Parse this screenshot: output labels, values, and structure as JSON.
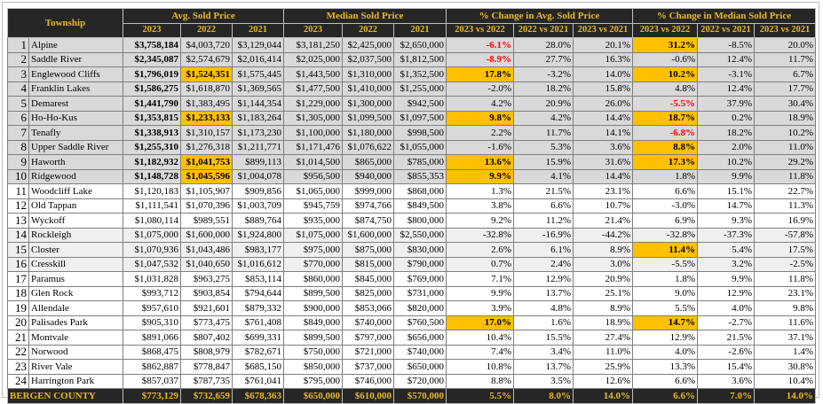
{
  "table": {
    "header": {
      "township": "Township",
      "groups": [
        "Avg. Sold Price",
        "Median Sold Price",
        "% Change in Avg. Sold Price",
        "% Change in Median Sold Price"
      ],
      "subheaders": [
        "2023",
        "2022",
        "2021",
        "2023",
        "2022",
        "2021",
        "2023 vs 2022",
        "2022 vs 2021",
        "2023 vs 2021",
        "2023 vs 2022",
        "2022 vs 2021",
        "2023 vs 2021"
      ]
    },
    "rows": [
      {
        "rank": "1",
        "township": "Alpine",
        "values": [
          "$3,758,184",
          "$4,003,720",
          "$3,129,044",
          "$3,181,250",
          "$2,425,000",
          "$2,650,000",
          "-6.1%",
          "28.0%",
          "20.1%",
          "31.2%",
          "-8.5%",
          "20.0%"
        ]
      },
      {
        "rank": "2",
        "township": "Saddle River",
        "values": [
          "$2,345,087",
          "$2,574,679",
          "$2,016,414",
          "$2,025,000",
          "$2,037,500",
          "$1,812,500",
          "-8.9%",
          "27.7%",
          "16.3%",
          "-0.6%",
          "12.4%",
          "11.7%"
        ]
      },
      {
        "rank": "3",
        "township": "Englewood Cliffs",
        "values": [
          "$1,796,019",
          "$1,524,351",
          "$1,575,445",
          "$1,443,500",
          "$1,310,000",
          "$1,352,500",
          "17.8%",
          "-3.2%",
          "14.0%",
          "10.2%",
          "-3.1%",
          "6.7%"
        ]
      },
      {
        "rank": "4",
        "township": "Franklin Lakes",
        "values": [
          "$1,586,275",
          "$1,618,870",
          "$1,369,565",
          "$1,477,500",
          "$1,410,000",
          "$1,255,000",
          "-2.0%",
          "18.2%",
          "15.8%",
          "4.8%",
          "12.4%",
          "17.7%"
        ]
      },
      {
        "rank": "5",
        "township": "Demarest",
        "values": [
          "$1,441,790",
          "$1,383,495",
          "$1,144,354",
          "$1,229,000",
          "$1,300,000",
          "$942,500",
          "4.2%",
          "20.9%",
          "26.0%",
          "-5.5%",
          "37.9%",
          "30.4%"
        ]
      },
      {
        "rank": "6",
        "township": "Ho-Ho-Kus",
        "values": [
          "$1,353,815",
          "$1,233,133",
          "$1,183,264",
          "$1,305,000",
          "$1,099,500",
          "$1,097,500",
          "9.8%",
          "4.2%",
          "14.4%",
          "18.7%",
          "0.2%",
          "18.9%"
        ]
      },
      {
        "rank": "7",
        "township": "Tenafly",
        "values": [
          "$1,338,913",
          "$1,310,157",
          "$1,173,230",
          "$1,100,000",
          "$1,180,000",
          "$998,500",
          "2.2%",
          "11.7%",
          "14.1%",
          "-6.8%",
          "18.2%",
          "10.2%"
        ]
      },
      {
        "rank": "8",
        "township": "Upper Saddle River",
        "values": [
          "$1,255,310",
          "$1,276,318",
          "$1,211,771",
          "$1,171,476",
          "$1,076,622",
          "$1,055,000",
          "-1.6%",
          "5.3%",
          "3.6%",
          "8.8%",
          "2.0%",
          "11.0%"
        ]
      },
      {
        "rank": "9",
        "township": "Haworth",
        "values": [
          "$1,182,932",
          "$1,041,753",
          "$899,113",
          "$1,014,500",
          "$865,000",
          "$785,000",
          "13.6%",
          "15.9%",
          "31.6%",
          "17.3%",
          "10.2%",
          "29.2%"
        ]
      },
      {
        "rank": "10",
        "township": "Ridgewood",
        "values": [
          "$1,148,728",
          "$1,045,596",
          "$1,004,078",
          "$956,500",
          "$940,000",
          "$855,353",
          "9.9%",
          "4.1%",
          "14.4%",
          "1.8%",
          "9.9%",
          "11.8%"
        ]
      },
      {
        "rank": "11",
        "township": "Woodcliff Lake",
        "values": [
          "$1,120,183",
          "$1,105,907",
          "$909,856",
          "$1,065,000",
          "$999,000",
          "$868,000",
          "1.3%",
          "21.5%",
          "23.1%",
          "6.6%",
          "15.1%",
          "22.7%"
        ]
      },
      {
        "rank": "12",
        "township": "Old Tappan",
        "values": [
          "$1,111,541",
          "$1,070,396",
          "$1,003,709",
          "$945,759",
          "$974,766",
          "$849,500",
          "3.8%",
          "6.6%",
          "10.7%",
          "-3.0%",
          "14.7%",
          "11.3%"
        ]
      },
      {
        "rank": "13",
        "township": "Wyckoff",
        "values": [
          "$1,080,114",
          "$989,551",
          "$889,764",
          "$935,000",
          "$874,750",
          "$800,000",
          "9.2%",
          "11.2%",
          "21.4%",
          "6.9%",
          "9.3%",
          "16.9%"
        ]
      },
      {
        "rank": "14",
        "township": "Rockleigh",
        "values": [
          "$1,075,000",
          "$1,600,000",
          "$1,924,800",
          "$1,075,000",
          "$1,600,000",
          "$2,550,000",
          "-32.8%",
          "-16.9%",
          "-44.2%",
          "-32.8%",
          "-37.3%",
          "-57.8%"
        ]
      },
      {
        "rank": "15",
        "township": "Closter",
        "values": [
          "$1,070,936",
          "$1,043,486",
          "$983,177",
          "$975,000",
          "$875,000",
          "$830,000",
          "2.6%",
          "6.1%",
          "8.9%",
          "11.4%",
          "5.4%",
          "17.5%"
        ]
      },
      {
        "rank": "16",
        "township": "Cresskill",
        "values": [
          "$1,047,532",
          "$1,040,650",
          "$1,016,612",
          "$770,000",
          "$815,000",
          "$790,000",
          "0.7%",
          "2.4%",
          "3.0%",
          "-5.5%",
          "3.2%",
          "-2.5%"
        ]
      },
      {
        "rank": "17",
        "township": "Paramus",
        "values": [
          "$1,031,828",
          "$963,275",
          "$853,114",
          "$860,000",
          "$845,000",
          "$769,000",
          "7.1%",
          "12.9%",
          "20.9%",
          "1.8%",
          "9.9%",
          "11.8%"
        ]
      },
      {
        "rank": "18",
        "township": "Glen Rock",
        "values": [
          "$993,712",
          "$903,854",
          "$794,644",
          "$899,500",
          "$825,000",
          "$731,000",
          "9.9%",
          "13.7%",
          "25.1%",
          "9.0%",
          "12.9%",
          "23.1%"
        ]
      },
      {
        "rank": "19",
        "township": "Allendale",
        "values": [
          "$957,610",
          "$921,601",
          "$879,332",
          "$900,000",
          "$853,066",
          "$820,000",
          "3.9%",
          "4.8%",
          "8.9%",
          "5.5%",
          "4.0%",
          "9.8%"
        ]
      },
      {
        "rank": "20",
        "township": "Palisades Park",
        "values": [
          "$905,310",
          "$773,475",
          "$761,408",
          "$849,000",
          "$740,000",
          "$760,500",
          "17.0%",
          "1.6%",
          "18.9%",
          "14.7%",
          "-2.7%",
          "11.6%"
        ]
      },
      {
        "rank": "21",
        "township": "Montvale",
        "values": [
          "$891,066",
          "$807,402",
          "$699,331",
          "$899,500",
          "$797,000",
          "$656,000",
          "10.4%",
          "15.5%",
          "27.4%",
          "12.9%",
          "21.5%",
          "37.1%"
        ]
      },
      {
        "rank": "22",
        "township": "Norwood",
        "values": [
          "$868,475",
          "$808,979",
          "$782,671",
          "$750,000",
          "$721,000",
          "$740,000",
          "7.4%",
          "3.4%",
          "11.0%",
          "4.0%",
          "-2.6%",
          "1.4%"
        ]
      },
      {
        "rank": "23",
        "township": "River Vale",
        "values": [
          "$862,887",
          "$778,847",
          "$685,150",
          "$850,000",
          "$737,000",
          "$650,000",
          "10.8%",
          "13.7%",
          "25.9%",
          "13.3%",
          "15.4%",
          "30.8%"
        ]
      },
      {
        "rank": "24",
        "township": "Harrington Park",
        "values": [
          "$857,037",
          "$787,735",
          "$761,041",
          "$795,000",
          "$746,000",
          "$720,000",
          "8.8%",
          "3.5%",
          "12.6%",
          "6.6%",
          "3.6%",
          "10.4%"
        ]
      }
    ],
    "total": {
      "label": "BERGEN COUNTY",
      "values": [
        "$773,129",
        "$732,659",
        "$678,363",
        "$650,000",
        "$610,000",
        "$570,000",
        "5.5%",
        "8.0%",
        "14.0%",
        "6.6%",
        "7.0%",
        "14.0%"
      ]
    }
  }
}
